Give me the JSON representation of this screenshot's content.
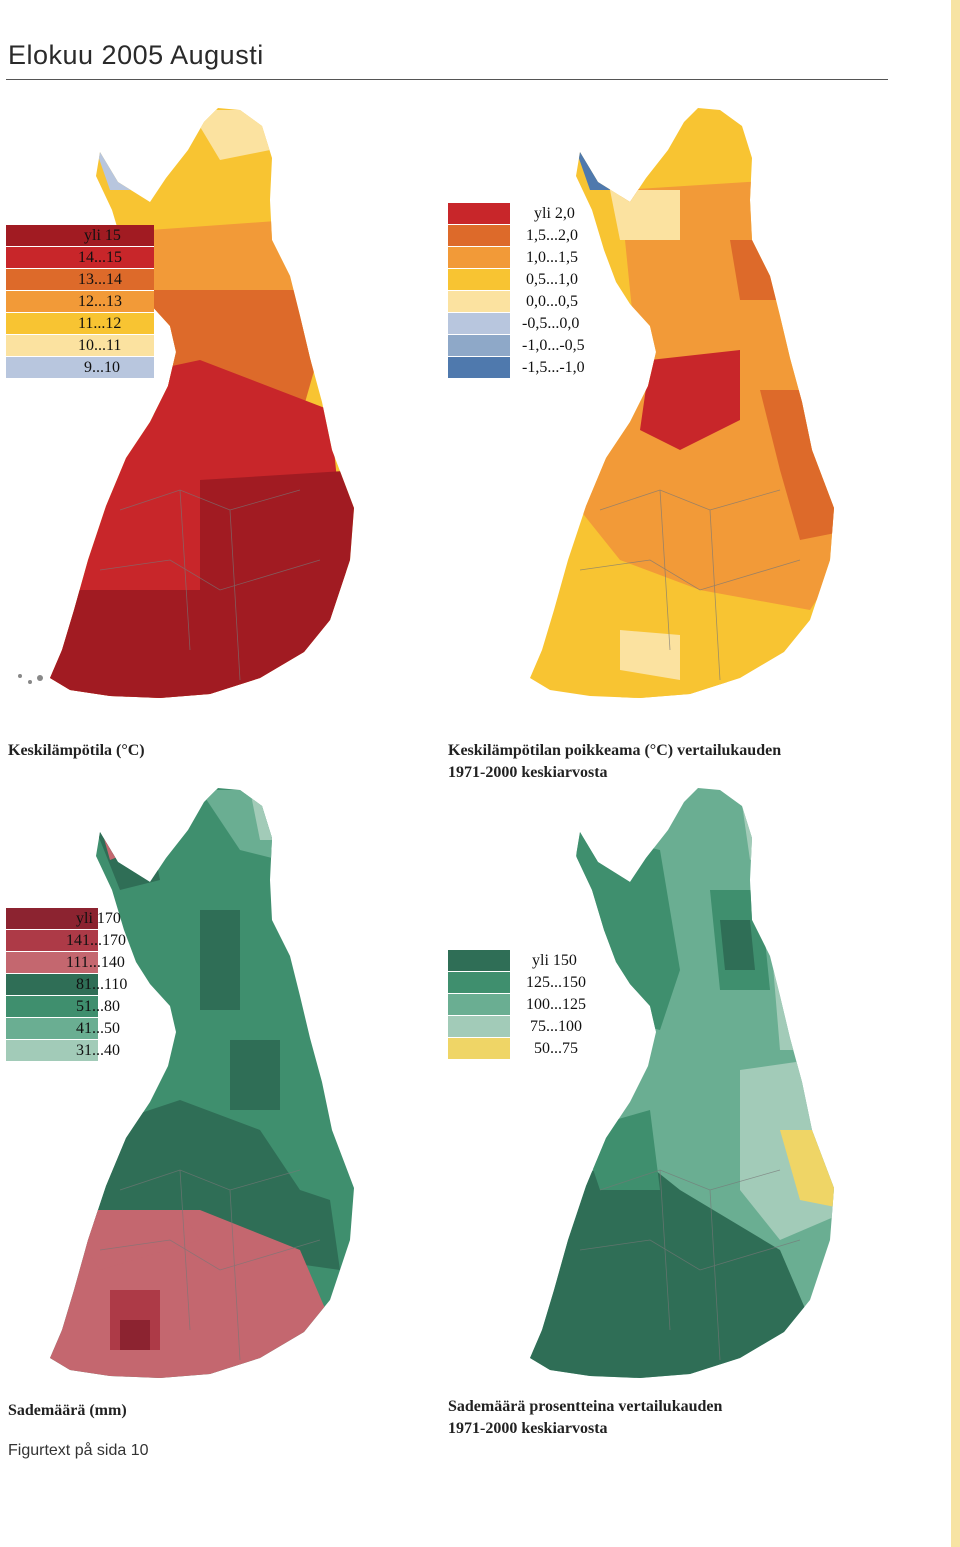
{
  "page": {
    "title": "Elokuu 2005 Augusti",
    "footnote": "Figurtext på sida 10"
  },
  "maps": [
    {
      "id": "temperature",
      "caption": "Keskilämpötila (°C)",
      "legend": [
        {
          "label": "yli 15",
          "color": "#a11b22"
        },
        {
          "label": "14...15",
          "color": "#c8262a"
        },
        {
          "label": "13...14",
          "color": "#dd6a2a"
        },
        {
          "label": "12...13",
          "color": "#f29a38"
        },
        {
          "label": "11...12",
          "color": "#f8c432"
        },
        {
          "label": "10...11",
          "color": "#fbe2a0"
        },
        {
          "label": "9...10",
          "color": "#b8c6de"
        }
      ]
    },
    {
      "id": "temperature-anomaly",
      "caption": "Keskilämpötilan poikkeama (°C) vertailukauden 1971-2000 keskiarvosta",
      "caption_lines": [
        "Keskilämpötilan poikkeama (°C) vertailukauden",
        "1971-2000 keskiarvosta"
      ],
      "legend": [
        {
          "label": "yli 2,0",
          "color": "#c8262a"
        },
        {
          "label": "1,5...2,0",
          "color": "#dd6a2a"
        },
        {
          "label": "1,0...1,5",
          "color": "#f29a38"
        },
        {
          "label": "0,5...1,0",
          "color": "#f8c432"
        },
        {
          "label": "0,0...0,5",
          "color": "#fbe2a0"
        },
        {
          "label": "-0,5...0,0",
          "color": "#b8c6de"
        },
        {
          "label": "-1,0...-0,5",
          "color": "#8ea8c8"
        },
        {
          "label": "-1,5...-1,0",
          "color": "#4f79ad"
        }
      ]
    },
    {
      "id": "precipitation",
      "caption": "Sademäärä (mm)",
      "legend": [
        {
          "label": "yli 170",
          "color": "#8c2330"
        },
        {
          "label": "141...170",
          "color": "#ad3a47"
        },
        {
          "label": "111...140",
          "color": "#c4676f"
        },
        {
          "label": "81...110",
          "color": "#2f6e56"
        },
        {
          "label": "51...80",
          "color": "#3f8f6e"
        },
        {
          "label": "41...50",
          "color": "#6aae92"
        },
        {
          "label": "31...40",
          "color": "#a2cbb8"
        }
      ]
    },
    {
      "id": "precipitation-percent",
      "caption": "Sademäärä prosentteina vertailukauden 1971-2000 keskiarvosta",
      "caption_lines": [
        "Sademäärä prosentteina vertailukauden",
        "1971-2000 keskiarvosta"
      ],
      "legend": [
        {
          "label": "yli 150",
          "color": "#2f6e56"
        },
        {
          "label": "125...150",
          "color": "#3f8f6e"
        },
        {
          "label": "100...125",
          "color": "#6aae92"
        },
        {
          "label": "75...100",
          "color": "#a2cbb8"
        },
        {
          "label": "50...75",
          "color": "#efd566"
        }
      ]
    }
  ]
}
